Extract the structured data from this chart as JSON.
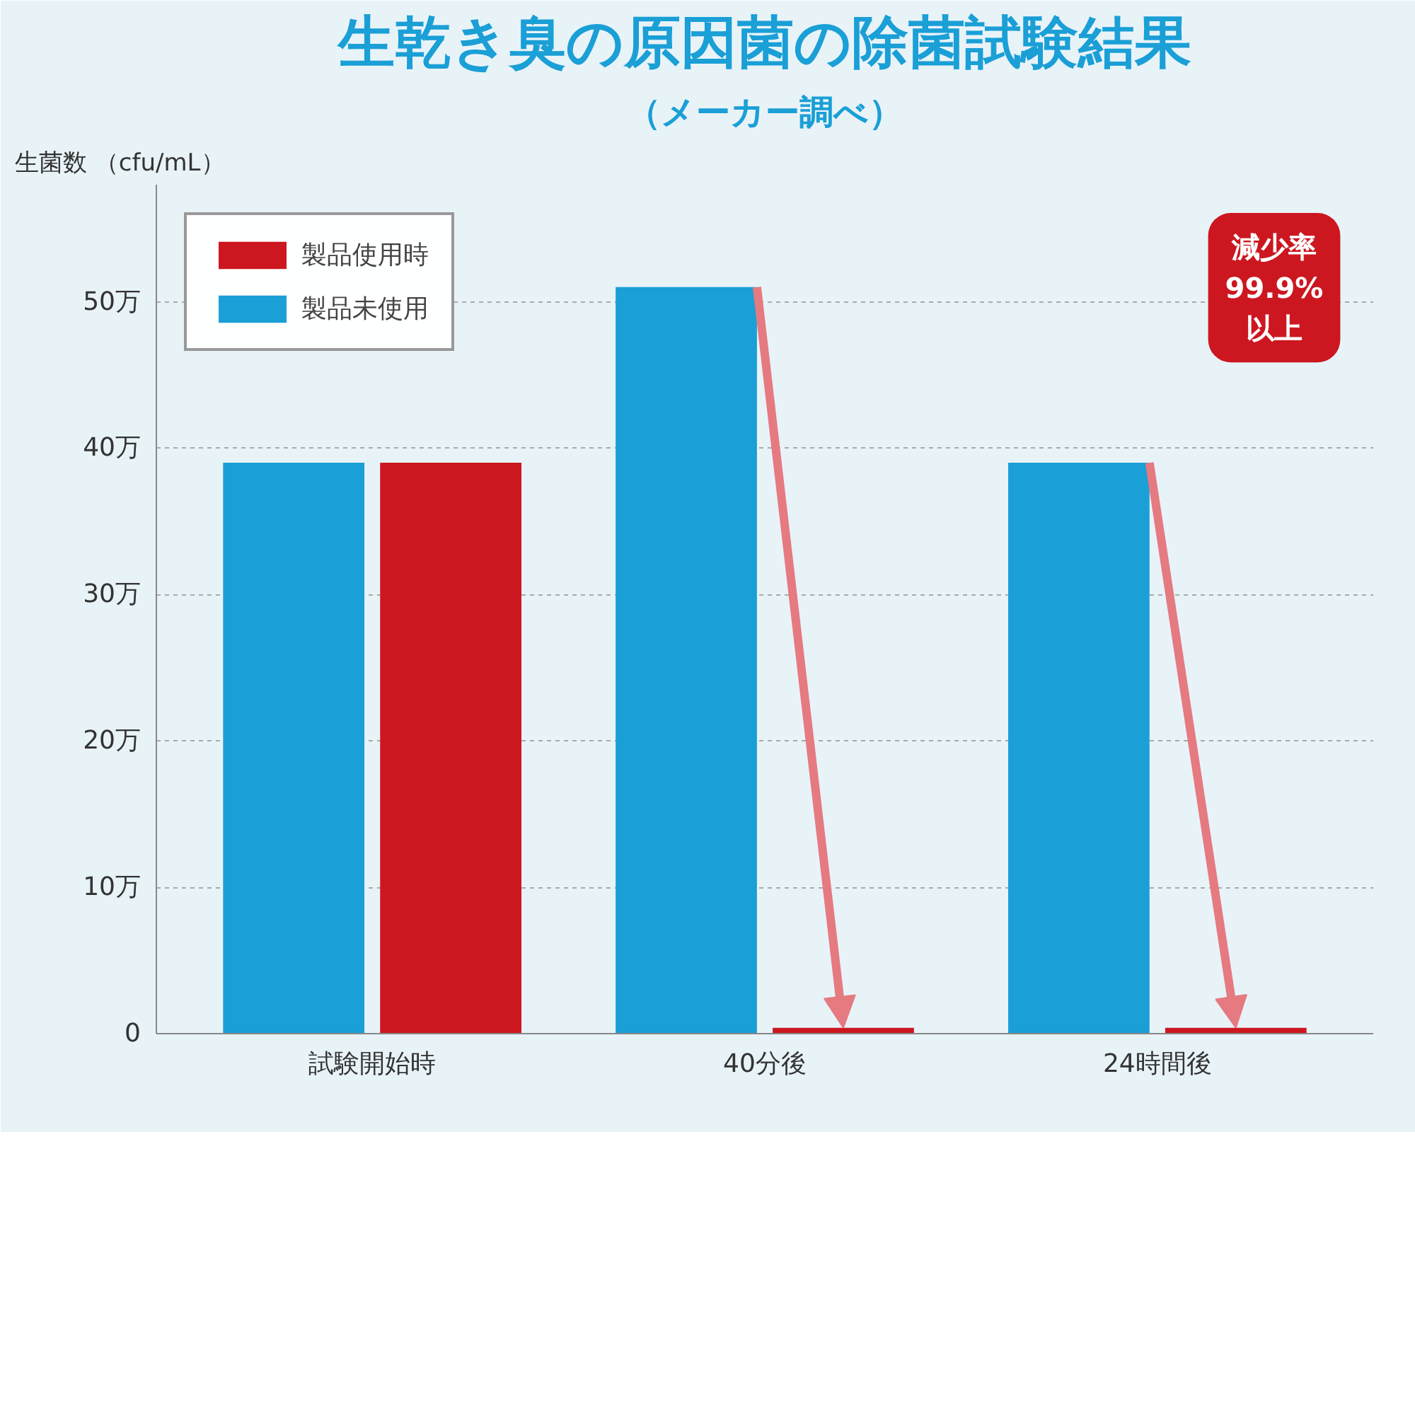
{
  "chart_data": {
    "type": "bar",
    "title": "生乾き臭の原因菌の除菌試験結果",
    "subtitle": "（メーカー調べ）",
    "ylabel": "生菌数 （cfu/mL）",
    "categories": [
      "試験開始時",
      "40分後",
      "24時間後"
    ],
    "series": [
      {
        "name": "製品未使用",
        "color": "#1a9fd6",
        "values": [
          39,
          51,
          39
        ]
      },
      {
        "name": "製品使用時",
        "color": "#cc1720",
        "values": [
          39,
          0.4,
          0.4
        ]
      }
    ],
    "ylim": [
      0,
      58
    ],
    "yticks": [
      0,
      {
        "value": 10,
        "label": "10万"
      },
      {
        "value": 20,
        "label": "20万"
      },
      {
        "value": 30,
        "label": "30万"
      },
      {
        "value": 40,
        "label": "40万"
      },
      {
        "value": 50,
        "label": "50万"
      }
    ],
    "grid": "y",
    "legend": "top left",
    "annotations": [
      "減少率\n99.9%\n以上"
    ]
  }
}
